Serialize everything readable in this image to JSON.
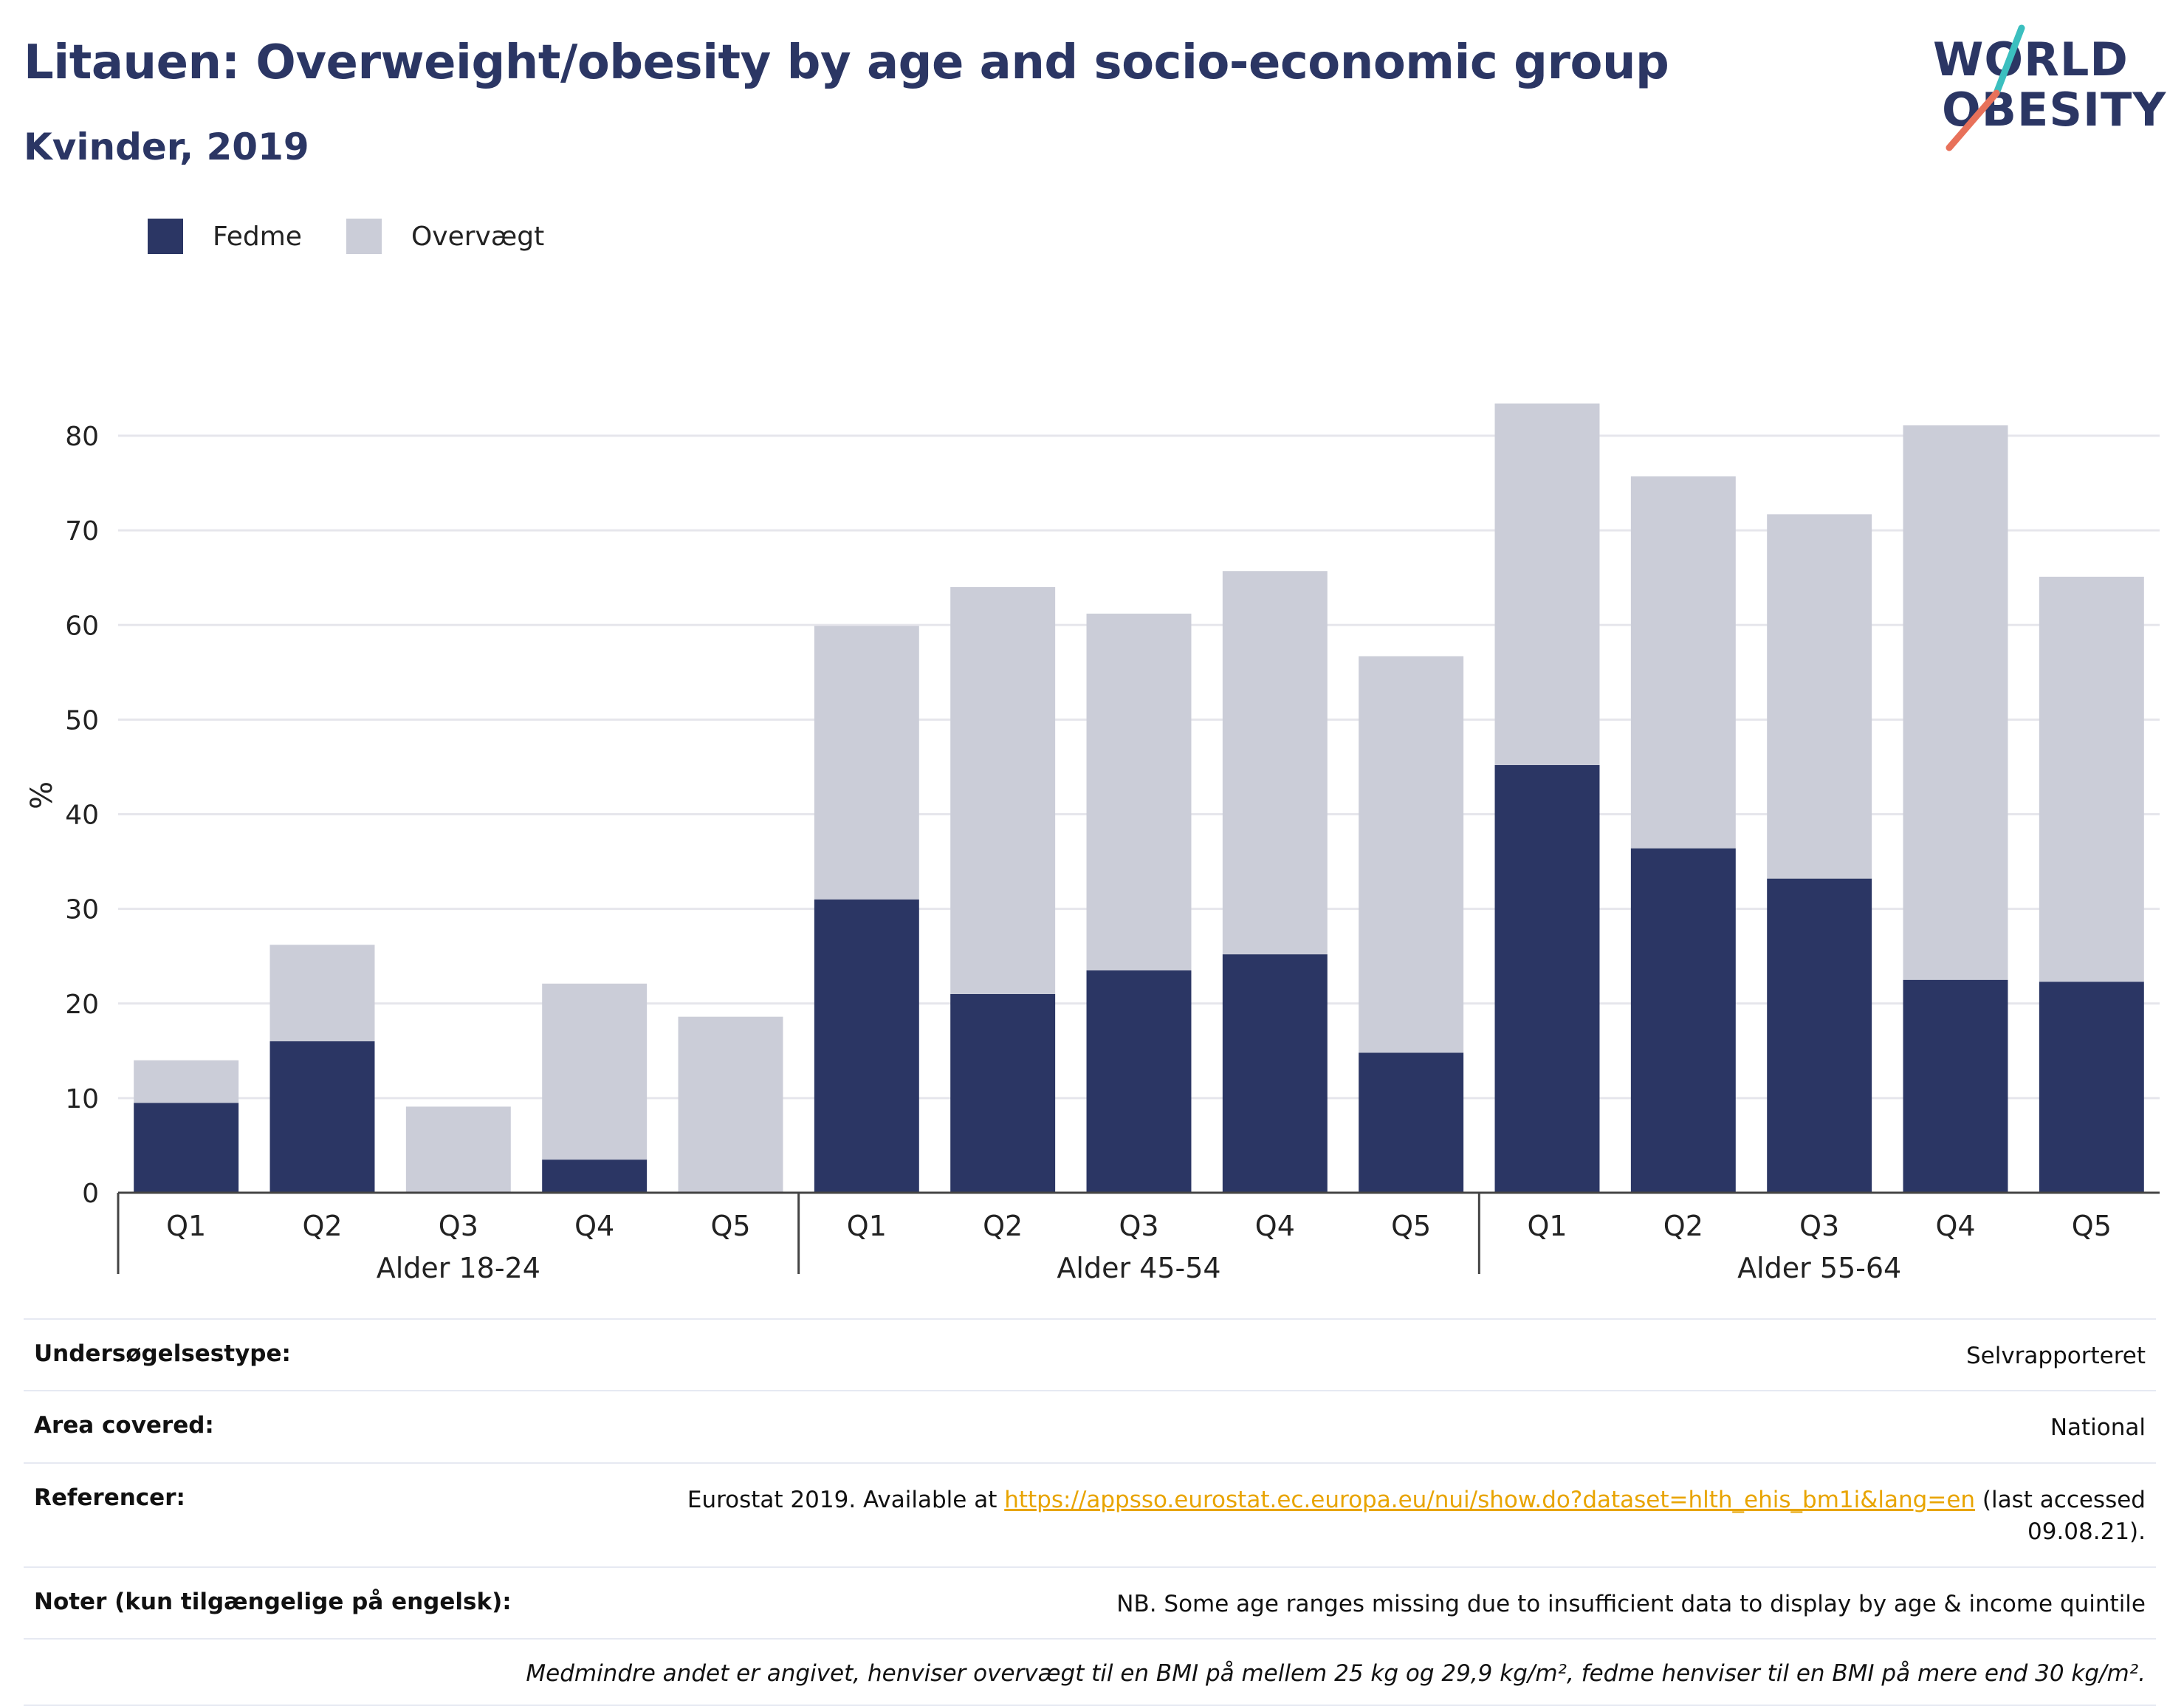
{
  "header": {
    "title": "Litauen: Overweight/obesity by age and socio-economic group",
    "subtitle": "Kvinder, 2019"
  },
  "logo": {
    "line1": "WORLD",
    "line2": "OBESITY",
    "colors": {
      "text": "#2b3664",
      "slash_teal": "#3bbfbf",
      "slash_coral": "#e8715a"
    }
  },
  "colors": {
    "fedme": "#2b3664",
    "overvaegt": "#cbcdd8",
    "grid": "#e6e6ec",
    "axis": "#444444",
    "link": "#e8a400"
  },
  "chart_data": {
    "type": "bar",
    "stacked": true,
    "ylabel": "%",
    "ylim": [
      0,
      85
    ],
    "yticks": [
      0,
      10,
      20,
      30,
      40,
      50,
      60,
      70,
      80
    ],
    "grid": true,
    "legend_position": "top-left",
    "groups": [
      {
        "label": "Alder 18-24",
        "categories": [
          "Q1",
          "Q2",
          "Q3",
          "Q4",
          "Q5"
        ]
      },
      {
        "label": "Alder 45-54",
        "categories": [
          "Q1",
          "Q2",
          "Q3",
          "Q4",
          "Q5"
        ]
      },
      {
        "label": "Alder 55-64",
        "categories": [
          "Q1",
          "Q2",
          "Q3",
          "Q4",
          "Q5"
        ]
      }
    ],
    "series": [
      {
        "name": "Fedme",
        "values": [
          9.5,
          16,
          0,
          3.5,
          0,
          31,
          21,
          23.5,
          25.2,
          14.8,
          45.2,
          36.4,
          33.2,
          22.5,
          22.3
        ]
      },
      {
        "name": "Overvægt",
        "values": [
          4.5,
          10.2,
          9.1,
          18.6,
          18.6,
          28.9,
          43,
          37.7,
          40.5,
          41.9,
          38.2,
          39.3,
          38.5,
          58.6,
          42.8
        ]
      }
    ]
  },
  "meta": {
    "rows": [
      {
        "label": "Undersøgelsestype:",
        "value": "Selvrapporteret"
      },
      {
        "label": "Area covered:",
        "value": "National"
      },
      {
        "label": "Referencer:",
        "value_prefix": "Eurostat 2019. Available at ",
        "link": "https://appsso.eurostat.ec.europa.eu/nui/show.do?dataset=hlth_ehis_bm1i&lang=en",
        "value_suffix": " (last accessed 09.08.21)."
      },
      {
        "label": "Noter (kun tilgængelige på engelsk):",
        "value": "NB. Some age ranges missing due to insufficient data to display by age & income quintile"
      }
    ],
    "footnote": "Medmindre andet er angivet, henviser overvægt til en BMI på mellem 25 kg og 29,9 kg/m², fedme henviser til en BMI på mere end 30 kg/m²."
  }
}
